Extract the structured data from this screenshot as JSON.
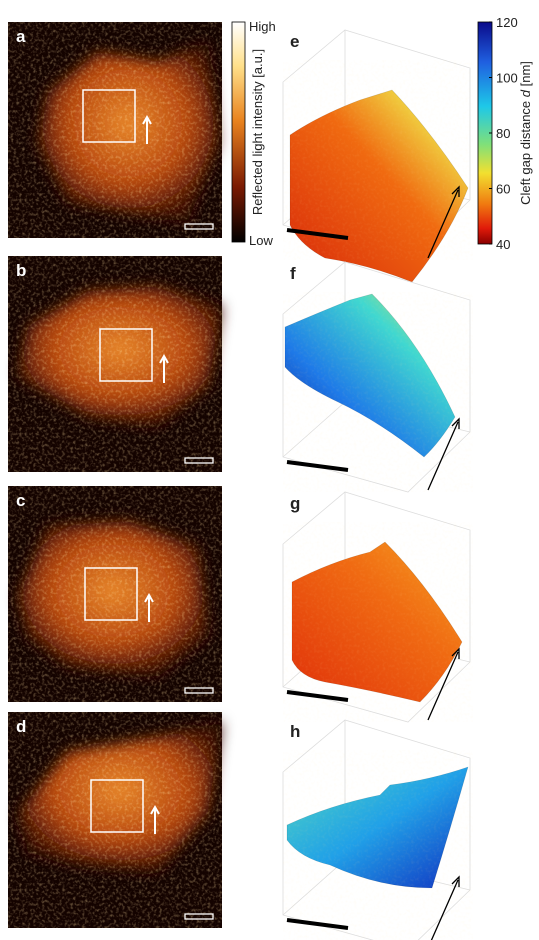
{
  "panels": [
    {
      "label": "a"
    },
    {
      "label": "b"
    },
    {
      "label": "c"
    },
    {
      "label": "d"
    },
    {
      "label": "e"
    },
    {
      "label": "f"
    },
    {
      "label": "g"
    },
    {
      "label": "h"
    }
  ],
  "intensity_colorbar": {
    "high": "High",
    "low": "Low",
    "label": "Reflected light intensity [a.u.]"
  },
  "gap_colorbar": {
    "ticks": [
      40,
      60,
      80,
      100,
      120
    ],
    "label_start": "Cleft gap distance ",
    "label_symbol": "d",
    "label_unit": " [nm]"
  }
}
